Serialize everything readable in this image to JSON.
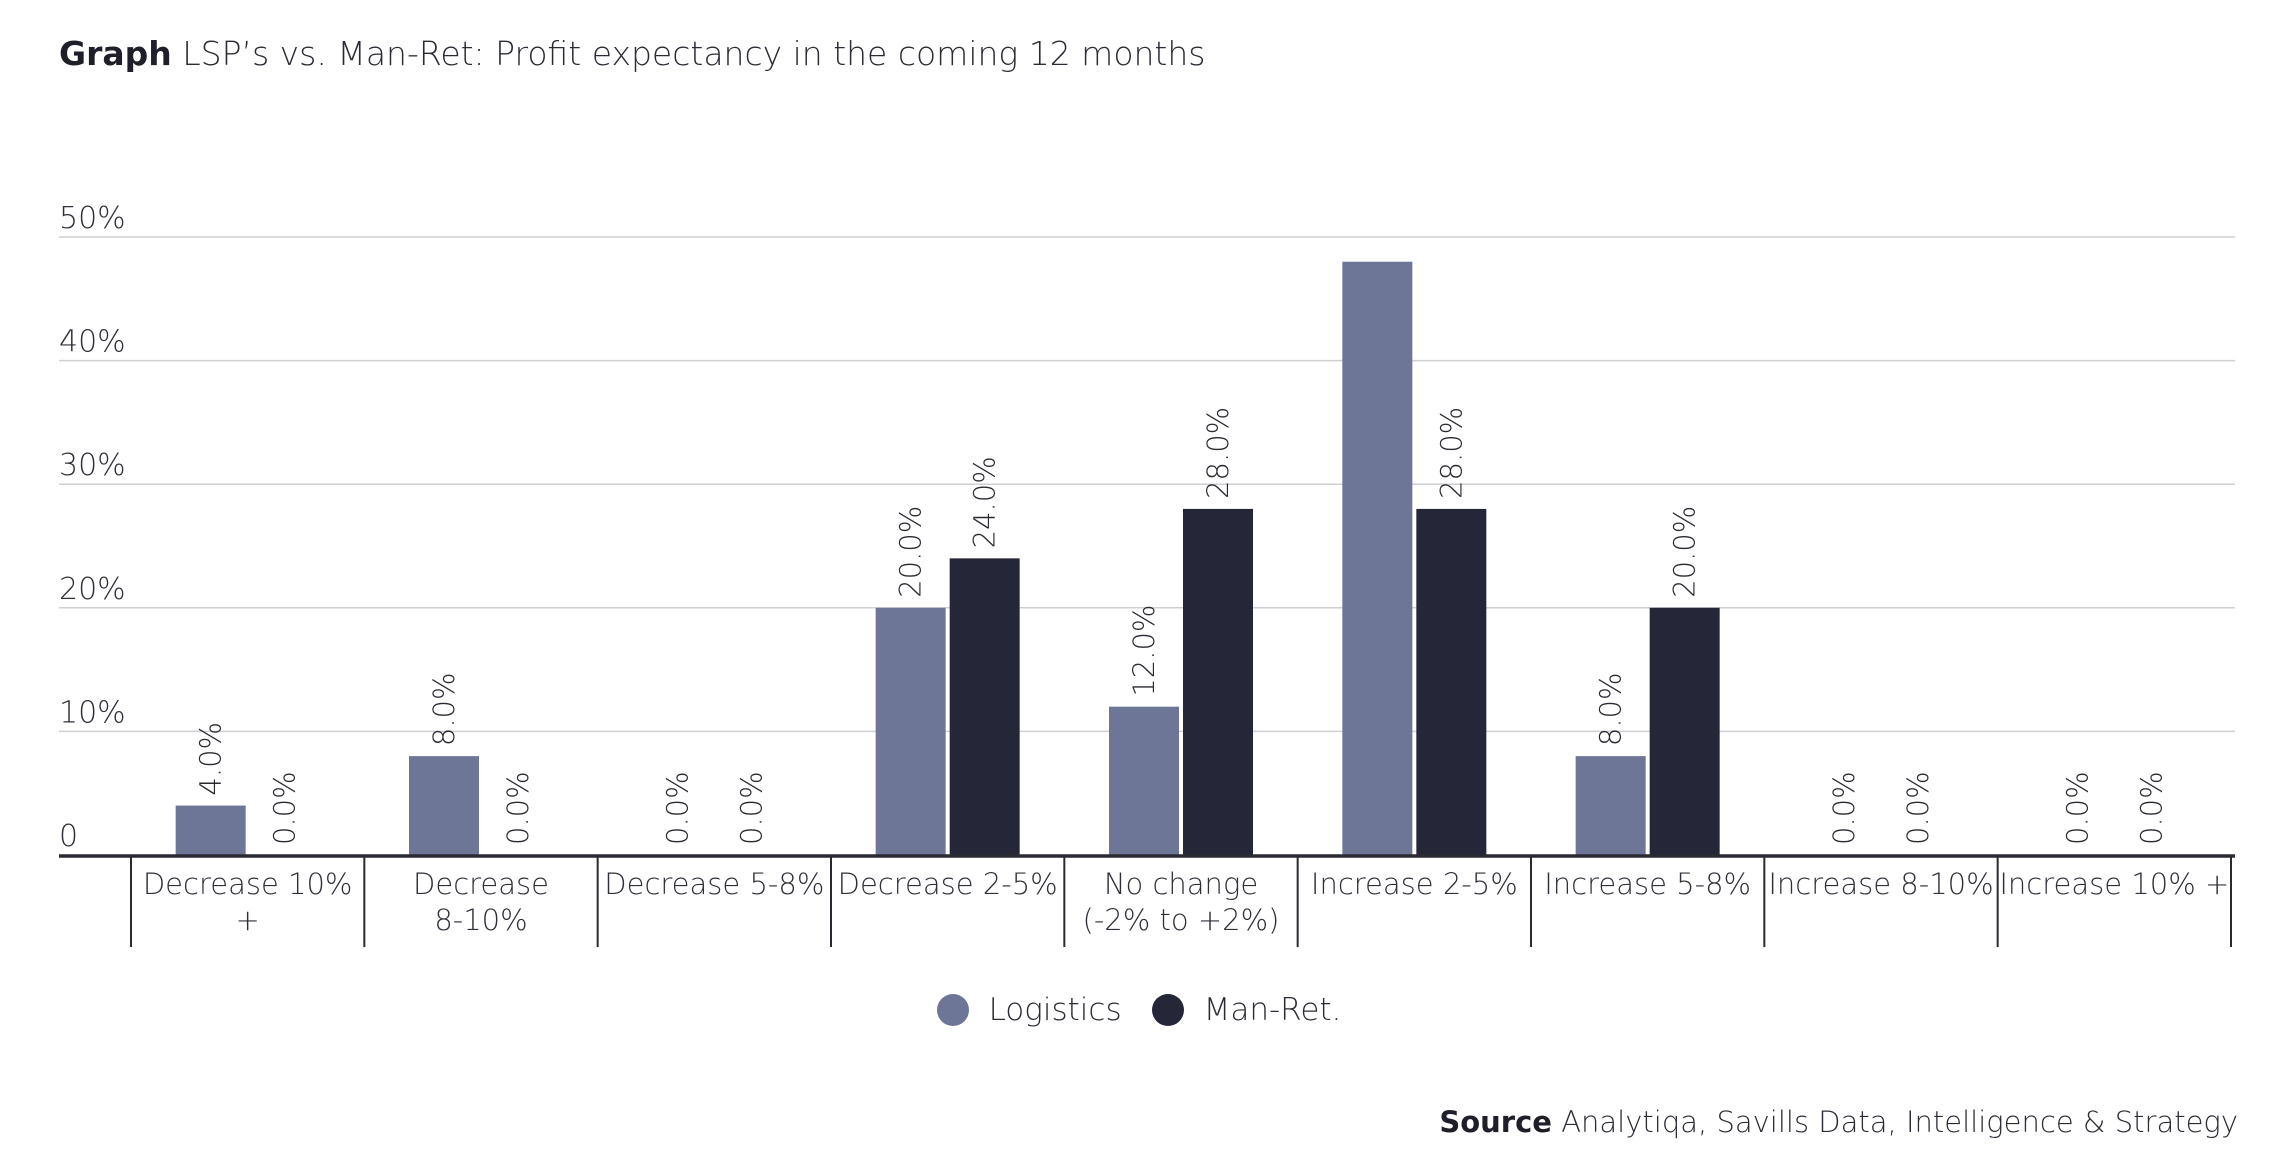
{
  "title": {
    "prefix": "Graph",
    "text": "LSP’s vs. Man-Ret: Profit expectancy in the coming 12 months"
  },
  "source": {
    "prefix": "Source",
    "text": "Analytiqa, Savills Data, Intelligence & Strategy"
  },
  "colors": {
    "logistics": "#6e7698",
    "manret": "#252638",
    "grid": "#cfcfd4",
    "axis": "#2a2a33",
    "text": "#2f2f3a"
  },
  "chart_data": {
    "type": "bar",
    "categories": [
      [
        "Decrease 10%",
        "+"
      ],
      [
        "Decrease",
        "8-10%"
      ],
      [
        "Decrease 5-8%"
      ],
      [
        "Decrease 2-5%"
      ],
      [
        "No change",
        "(-2% to +2%)"
      ],
      [
        "Increase 2-5%"
      ],
      [
        "Increase 5-8%"
      ],
      [
        "Increase 8-10%"
      ],
      [
        "Increase 10% +"
      ]
    ],
    "series": [
      {
        "name": "Logistics",
        "values": [
          4,
          8,
          0,
          20,
          12,
          48,
          8,
          0,
          0
        ],
        "labels": [
          "4.0%",
          "8.0%",
          "0.0%",
          "20.0%",
          "12.0%",
          "",
          "8.0%",
          "0.0%",
          "0.0%"
        ]
      },
      {
        "name": "Man-Ret.",
        "values": [
          0,
          0,
          0,
          24,
          28,
          28,
          20,
          0,
          0
        ],
        "labels": [
          "0.0%",
          "0.0%",
          "0.0%",
          "24.0%",
          "28.0%",
          "28.0%",
          "20.0%",
          "0.0%",
          "0.0%"
        ]
      }
    ],
    "yticks": [
      {
        "value": 0,
        "label": "0"
      },
      {
        "value": 10,
        "label": "10%"
      },
      {
        "value": 20,
        "label": "20%"
      },
      {
        "value": 30,
        "label": "30%"
      },
      {
        "value": 40,
        "label": "40%"
      },
      {
        "value": 50,
        "label": "50%"
      }
    ],
    "ylim": [
      0,
      50
    ],
    "grid": true,
    "legend_position": "bottom-center"
  }
}
